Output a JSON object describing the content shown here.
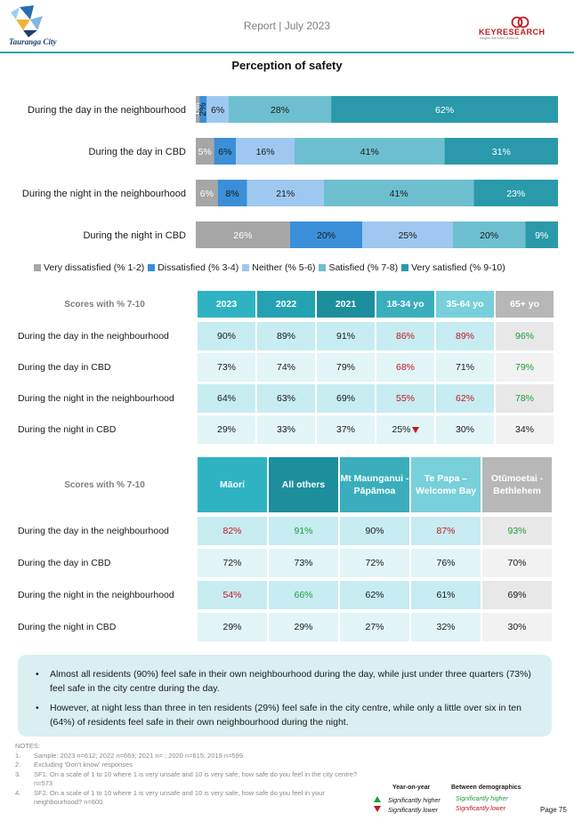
{
  "header": {
    "city_name": "Tauranga City",
    "report_label": "Report | July 2023",
    "research_brand": "KEYRESEARCH",
    "research_tagline": "Insights that drive Decisions"
  },
  "section_title": "Perception of safety",
  "chart_data": {
    "type": "bar",
    "orientation": "horizontal-stacked-100",
    "categories": [
      "During the day in the neighbourhood",
      "During the day in CBD",
      "During the night in the neighbourhood",
      "During the night in CBD"
    ],
    "series": [
      {
        "name": "Very dissatisfied (% 1-2)",
        "color": "#a6a6a6",
        "values": [
          1,
          5,
          6,
          26
        ],
        "labels": [
          "1%",
          "5%",
          "6%",
          "26%"
        ]
      },
      {
        "name": "Dissatisfied (% 3-4)",
        "color": "#3a8fd8",
        "values": [
          2,
          6,
          8,
          20
        ],
        "labels": [
          "2%",
          "6%",
          "8%",
          "20%"
        ]
      },
      {
        "name": "Neither (% 5-6)",
        "color": "#9ec8f0",
        "values": [
          6,
          16,
          21,
          25
        ],
        "labels": [
          "6%",
          "16%",
          "21%",
          "25%"
        ]
      },
      {
        "name": "Satisfied (% 7-8)",
        "color": "#6dbfcf",
        "values": [
          28,
          41,
          41,
          20
        ],
        "labels": [
          "28%",
          "41%",
          "41%",
          "20%"
        ]
      },
      {
        "name": "Very satisfied (% 9-10)",
        "color": "#2a9aaa",
        "values": [
          62,
          31,
          23,
          9
        ],
        "labels": [
          "62%",
          "31%",
          "23%",
          "9%"
        ]
      }
    ],
    "legend_position": "bottom"
  },
  "table1": {
    "header_label": "Scores with % 7-10",
    "columns": [
      {
        "label": "2023",
        "bg": "#2fb3c3"
      },
      {
        "label": "2022",
        "bg": "#24a2b2"
      },
      {
        "label": "2021",
        "bg": "#1d8f9c"
      },
      {
        "label": "18-34 yo",
        "bg": "#3aaebc"
      },
      {
        "label": "35-64 yo",
        "bg": "#78d0da"
      },
      {
        "label": "65+ yo",
        "bg": "#b7b7b7"
      }
    ],
    "rows": [
      {
        "label": "During the day in the neighbourhood",
        "cells": [
          {
            "text": "90%",
            "color": "",
            "bg": "#c7ecf1"
          },
          {
            "text": "89%",
            "color": "",
            "bg": "#c7ecf1"
          },
          {
            "text": "91%",
            "color": "",
            "bg": "#c7ecf1"
          },
          {
            "text": "86%",
            "color": "red",
            "bg": "#c7ecf1"
          },
          {
            "text": "89%",
            "color": "red",
            "bg": "#c7ecf1"
          },
          {
            "text": "96%",
            "color": "green",
            "bg": "#e8e8e8"
          }
        ]
      },
      {
        "label": "During the day in CBD",
        "cells": [
          {
            "text": "73%",
            "color": "",
            "bg": "#e2f5f7"
          },
          {
            "text": "74%",
            "color": "",
            "bg": "#e2f5f7"
          },
          {
            "text": "79%",
            "color": "",
            "bg": "#e2f5f7"
          },
          {
            "text": "68%",
            "color": "red",
            "bg": "#e2f5f7"
          },
          {
            "text": "71%",
            "color": "",
            "bg": "#e2f5f7"
          },
          {
            "text": "79%",
            "color": "green",
            "bg": "#f2f2f2"
          }
        ]
      },
      {
        "label": "During the night in the neighbourhood",
        "cells": [
          {
            "text": "64%",
            "color": "",
            "bg": "#c7ecf1"
          },
          {
            "text": "63%",
            "color": "",
            "bg": "#c7ecf1"
          },
          {
            "text": "69%",
            "color": "",
            "bg": "#c7ecf1"
          },
          {
            "text": "55%",
            "color": "red",
            "bg": "#c7ecf1"
          },
          {
            "text": "62%",
            "color": "red",
            "bg": "#c7ecf1"
          },
          {
            "text": "78%",
            "color": "green",
            "bg": "#e8e8e8"
          }
        ]
      },
      {
        "label": "During the night in CBD",
        "cells": [
          {
            "text": "29%",
            "color": "",
            "bg": "#e2f5f7"
          },
          {
            "text": "33%",
            "color": "",
            "bg": "#e2f5f7"
          },
          {
            "text": "37%",
            "color": "",
            "bg": "#e2f5f7"
          },
          {
            "text": "25%",
            "color": "",
            "bg": "#e2f5f7",
            "arrow": "down"
          },
          {
            "text": "30%",
            "color": "",
            "bg": "#e2f5f7"
          },
          {
            "text": "34%",
            "color": "",
            "bg": "#f2f2f2"
          }
        ]
      }
    ]
  },
  "table2": {
    "header_label": "Scores with % 7-10",
    "columns": [
      {
        "label": "Māori",
        "bg": "#2fb3c3"
      },
      {
        "label": "All others",
        "bg": "#1d8f9c"
      },
      {
        "label": "Mt Maunganui - Pāpāmoa",
        "bg": "#3aaebc"
      },
      {
        "label": "Te Papa – Welcome Bay",
        "bg": "#78d0da"
      },
      {
        "label": "Otūmoetai - Bethlehem",
        "bg": "#b7b7b7"
      }
    ],
    "rows": [
      {
        "label": "During the day in the neighbourhood",
        "cells": [
          {
            "text": "82%",
            "color": "red",
            "bg": "#c7ecf1"
          },
          {
            "text": "91%",
            "color": "green",
            "bg": "#c7ecf1"
          },
          {
            "text": "90%",
            "color": "",
            "bg": "#c7ecf1"
          },
          {
            "text": "87%",
            "color": "red",
            "bg": "#c7ecf1"
          },
          {
            "text": "93%",
            "color": "green",
            "bg": "#e8e8e8"
          }
        ]
      },
      {
        "label": "During the day in CBD",
        "cells": [
          {
            "text": "72%",
            "color": "",
            "bg": "#e2f5f7"
          },
          {
            "text": "73%",
            "color": "",
            "bg": "#e2f5f7"
          },
          {
            "text": "72%",
            "color": "",
            "bg": "#e2f5f7"
          },
          {
            "text": "76%",
            "color": "",
            "bg": "#e2f5f7"
          },
          {
            "text": "70%",
            "color": "",
            "bg": "#f2f2f2"
          }
        ]
      },
      {
        "label": "During the night in the neighbourhood",
        "cells": [
          {
            "text": "54%",
            "color": "red",
            "bg": "#c7ecf1"
          },
          {
            "text": "66%",
            "color": "green",
            "bg": "#c7ecf1"
          },
          {
            "text": "62%",
            "color": "",
            "bg": "#c7ecf1"
          },
          {
            "text": "61%",
            "color": "",
            "bg": "#c7ecf1"
          },
          {
            "text": "69%",
            "color": "",
            "bg": "#e8e8e8"
          }
        ]
      },
      {
        "label": "During the night in CBD",
        "cells": [
          {
            "text": "29%",
            "color": "",
            "bg": "#e2f5f7"
          },
          {
            "text": "29%",
            "color": "",
            "bg": "#e2f5f7"
          },
          {
            "text": "27%",
            "color": "",
            "bg": "#e2f5f7"
          },
          {
            "text": "32%",
            "color": "",
            "bg": "#e2f5f7"
          },
          {
            "text": "30%",
            "color": "",
            "bg": "#f2f2f2"
          }
        ]
      }
    ]
  },
  "summary": {
    "bullets": [
      "Almost all residents (90%) feel safe in their own neighbourhood during the day, while just under three quarters (73%) feel safe in the city centre during the day.",
      "However, at night less than three in ten residents (29%) feel safe in the city centre, while only a little over six in ten (64%) of residents feel safe in their own neighbourhood during the night."
    ]
  },
  "notes": {
    "title": "NOTES:",
    "items": [
      {
        "num": "1.",
        "text": "Sample: 2023 n=612; 2022 n=669; 2021 n= ; 2020 n=615; 2019 n=599."
      },
      {
        "num": "2.",
        "text": "Excluding 'Don't know' responses"
      },
      {
        "num": "3.",
        "text": "SF1. On a scale of 1 to 10 where 1 is very unsafe and 10 is very safe, how safe do you feel in the city centre? n=573"
      },
      {
        "num": "4.",
        "text": "SF2. On a scale of 1 to 10 where 1 is very unsafe and 10 is very safe, how safe do you feel in your neighbourhood? n=600"
      }
    ]
  },
  "key": {
    "year_on_year": "Year-on-year",
    "between_demographics": "Between demographics",
    "sig_higher": "Significantly higher",
    "sig_lower": "Significantly lower",
    "demo_higher": "Significantly higher",
    "demo_lower": "Significantly lower"
  },
  "page_number": "Page 75"
}
